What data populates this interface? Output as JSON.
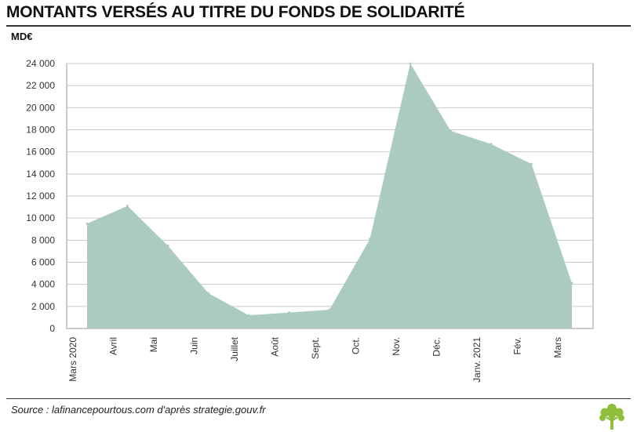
{
  "header": {
    "title": "MONTANTS VERSÉS AU TITRE DU FONDS DE SOLIDARITÉ",
    "unit": "MD€"
  },
  "footer": {
    "source": "Source : lafinancepourtous.com d'après strategie.gouv.fr"
  },
  "colors": {
    "area": "#abcbc1",
    "grid": "#c9c9c9",
    "logo": "#8fbe3a"
  },
  "icons": {
    "logo": "tree-icon"
  },
  "chart_data": {
    "type": "area",
    "title": "MONTANTS VERSÉS AU TITRE DU FONDS DE SOLIDARITÉ",
    "ylabel": "MD€",
    "categories": [
      "Mars 2020",
      "Avril",
      "Mai",
      "Juin",
      "Juillet",
      "Août",
      "Sept.",
      "Oct.",
      "Nov.",
      "Déc.",
      "Janv. 2021",
      "Fév.",
      "Mars"
    ],
    "values": [
      9500,
      11100,
      7500,
      3200,
      1200,
      1450,
      1700,
      8100,
      24000,
      17900,
      16700,
      14900,
      4100
    ],
    "ylim": [
      0,
      24000
    ],
    "yticks": [
      0,
      2000,
      4000,
      6000,
      8000,
      10000,
      12000,
      14000,
      16000,
      18000,
      20000,
      22000,
      24000
    ],
    "ytick_labels": [
      "0",
      "2 000",
      "4 000",
      "6 000",
      "8 000",
      "10 000",
      "12 000",
      "14 000",
      "16 000",
      "18 000",
      "20 000",
      "22 000",
      "24 000"
    ],
    "grid": true,
    "legend": "none"
  }
}
